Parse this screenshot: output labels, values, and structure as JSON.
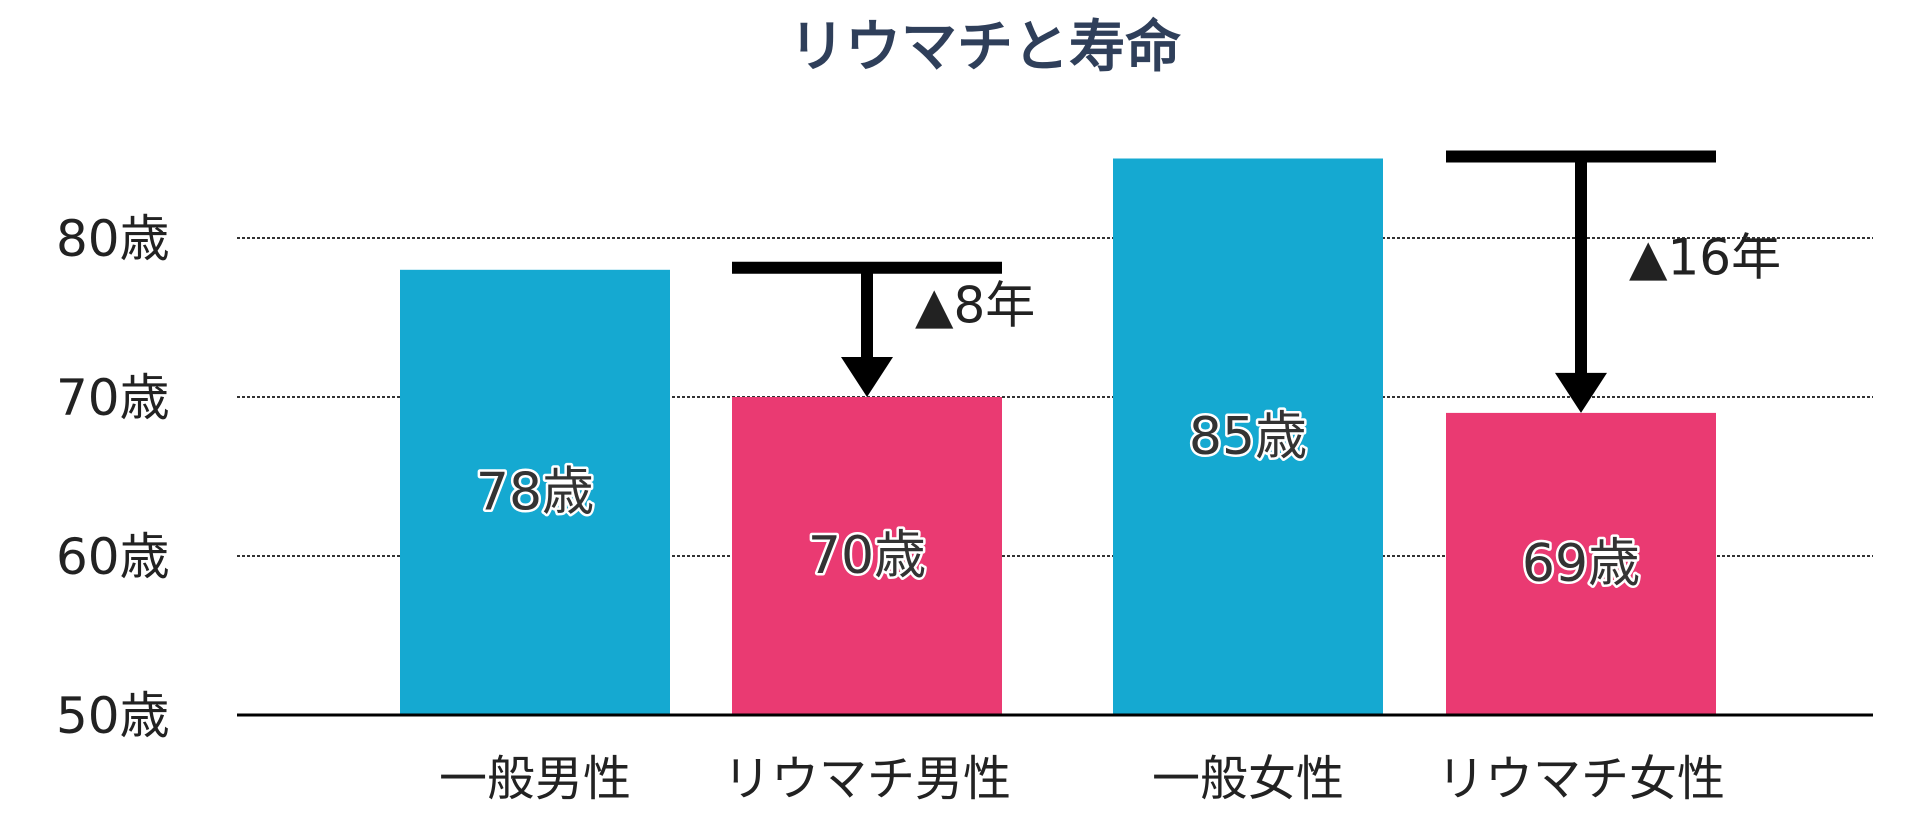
{
  "chart_data": {
    "type": "bar",
    "title": "リウマチと寿命",
    "categories": [
      "一般男性",
      "リウマチ男性",
      "一般女性",
      "リウマチ女性"
    ],
    "values": [
      78,
      70,
      85,
      69
    ],
    "value_labels": [
      "78歳",
      "70歳",
      "85歳",
      "69歳"
    ],
    "bar_colors": [
      "#15a9d1",
      "#ea3a72",
      "#15a9d1",
      "#ea3a72"
    ],
    "ylim": [
      50,
      85
    ],
    "y_ticks": [
      50,
      60,
      70,
      80
    ],
    "y_tick_labels": [
      "50歳",
      "60歳",
      "70歳",
      "80歳"
    ],
    "grid": true,
    "annotations": [
      {
        "from_index": 0,
        "to_index": 1,
        "text": "▲8年",
        "from_value": 78,
        "to_value": 70
      },
      {
        "from_index": 2,
        "to_index": 3,
        "text": "▲16年",
        "from_value": 85,
        "to_value": 69
      }
    ]
  }
}
